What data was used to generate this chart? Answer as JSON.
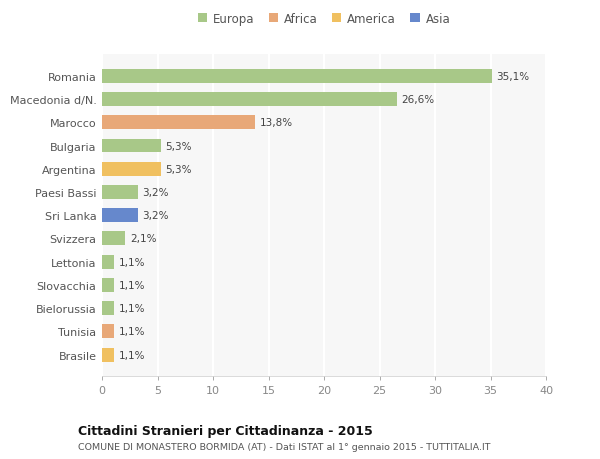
{
  "categories": [
    "Brasile",
    "Tunisia",
    "Bielorussia",
    "Slovacchia",
    "Lettonia",
    "Svizzera",
    "Sri Lanka",
    "Paesi Bassi",
    "Argentina",
    "Bulgaria",
    "Marocco",
    "Macedonia d/N.",
    "Romania"
  ],
  "values": [
    1.1,
    1.1,
    1.1,
    1.1,
    1.1,
    2.1,
    3.2,
    3.2,
    5.3,
    5.3,
    13.8,
    26.6,
    35.1
  ],
  "labels": [
    "1,1%",
    "1,1%",
    "1,1%",
    "1,1%",
    "1,1%",
    "2,1%",
    "3,2%",
    "3,2%",
    "5,3%",
    "5,3%",
    "13,8%",
    "26,6%",
    "35,1%"
  ],
  "colors": [
    "#f0c060",
    "#e8a878",
    "#a8c888",
    "#a8c888",
    "#a8c888",
    "#a8c888",
    "#6688cc",
    "#a8c888",
    "#f0c060",
    "#a8c888",
    "#e8a878",
    "#a8c888",
    "#a8c888"
  ],
  "legend": [
    {
      "label": "Europa",
      "color": "#a8c888"
    },
    {
      "label": "Africa",
      "color": "#e8a878"
    },
    {
      "label": "America",
      "color": "#f0c060"
    },
    {
      "label": "Asia",
      "color": "#6688cc"
    }
  ],
  "title1": "Cittadini Stranieri per Cittadinanza - 2015",
  "title2": "COMUNE DI MONASTERO BORMIDA (AT) - Dati ISTAT al 1° gennaio 2015 - TUTTITALIA.IT",
  "xlim": [
    0,
    40
  ],
  "xticks": [
    0,
    5,
    10,
    15,
    20,
    25,
    30,
    35,
    40
  ],
  "bg_color": "#ffffff",
  "plot_bg_color": "#f7f7f7",
  "grid_color": "#ffffff",
  "bar_height": 0.6
}
